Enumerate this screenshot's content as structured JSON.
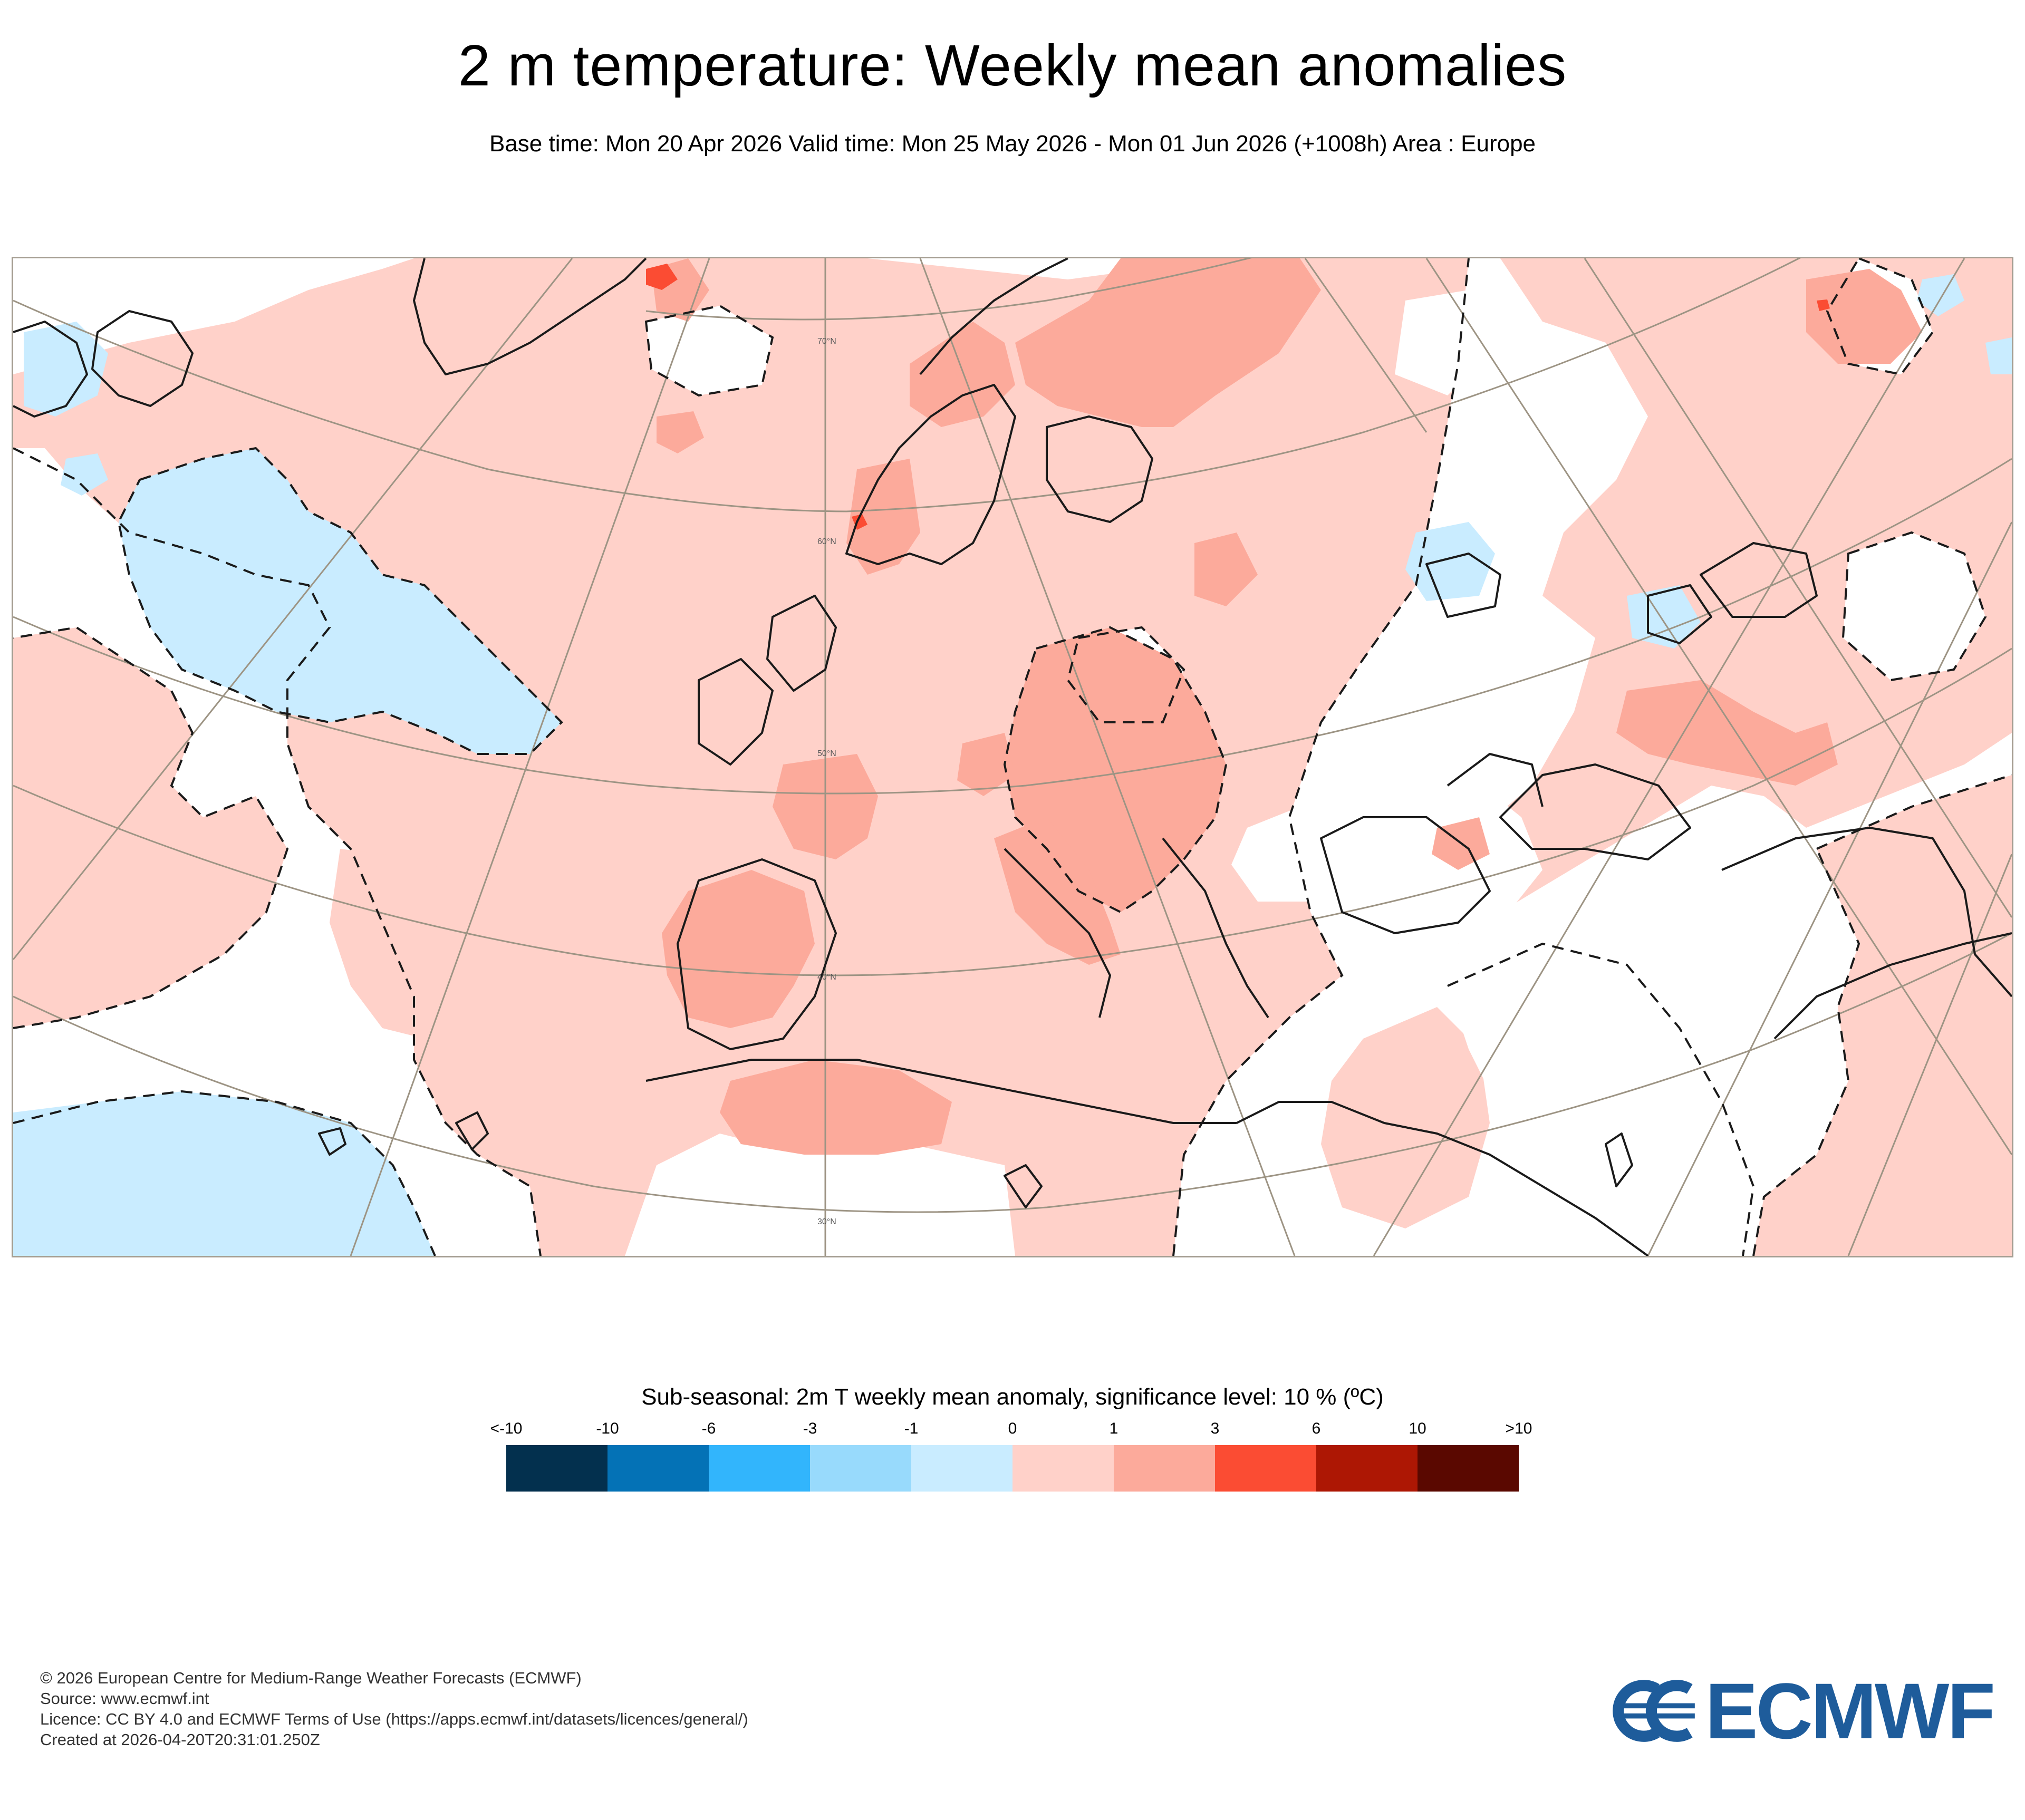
{
  "header": {
    "title": "2 m temperature: Weekly mean anomalies",
    "subtitle": "Base time: Mon 20 Apr 2026 Valid time: Mon 25 May 2026 - Mon 01 Jun 2026 (+1008h) Area : Europe"
  },
  "map": {
    "latitude_labels": [
      "70°N",
      "60°N",
      "50°N",
      "40°N",
      "30°N"
    ],
    "anomaly_colors": {
      "weak_negative": "#c9ecff",
      "weak_positive": "#ffd1c9",
      "moderate_positive": "#fcaa9b",
      "strong_positive": "#fb4c33"
    }
  },
  "legend": {
    "title": "Sub-seasonal: 2m T weekly mean anomaly, significance level: 10 % (ºC)",
    "ticks": [
      "<-10",
      "-10",
      "-6",
      "-3",
      "-1",
      "0",
      "1",
      "3",
      "6",
      "10",
      ">10"
    ],
    "colors": [
      "#03304e",
      "#0472b6",
      "#32b5fc",
      "#98dafc",
      "#c9ecff",
      "#ffd1c9",
      "#fcaa9b",
      "#fb4c33",
      "#ad1704",
      "#5a0800"
    ]
  },
  "footer": {
    "lines": [
      "© 2026 European Centre for Medium-Range Weather Forecasts (ECMWF)",
      "Source: www.ecmwf.int",
      "Licence: CC BY 4.0 and ECMWF Terms of Use (https://apps.ecmwf.int/datasets/licences/general/)",
      "Created at 2026-04-20T20:31:01.250Z"
    ]
  },
  "logo": {
    "text": "ECMWF",
    "color": "#1e5c9b"
  }
}
